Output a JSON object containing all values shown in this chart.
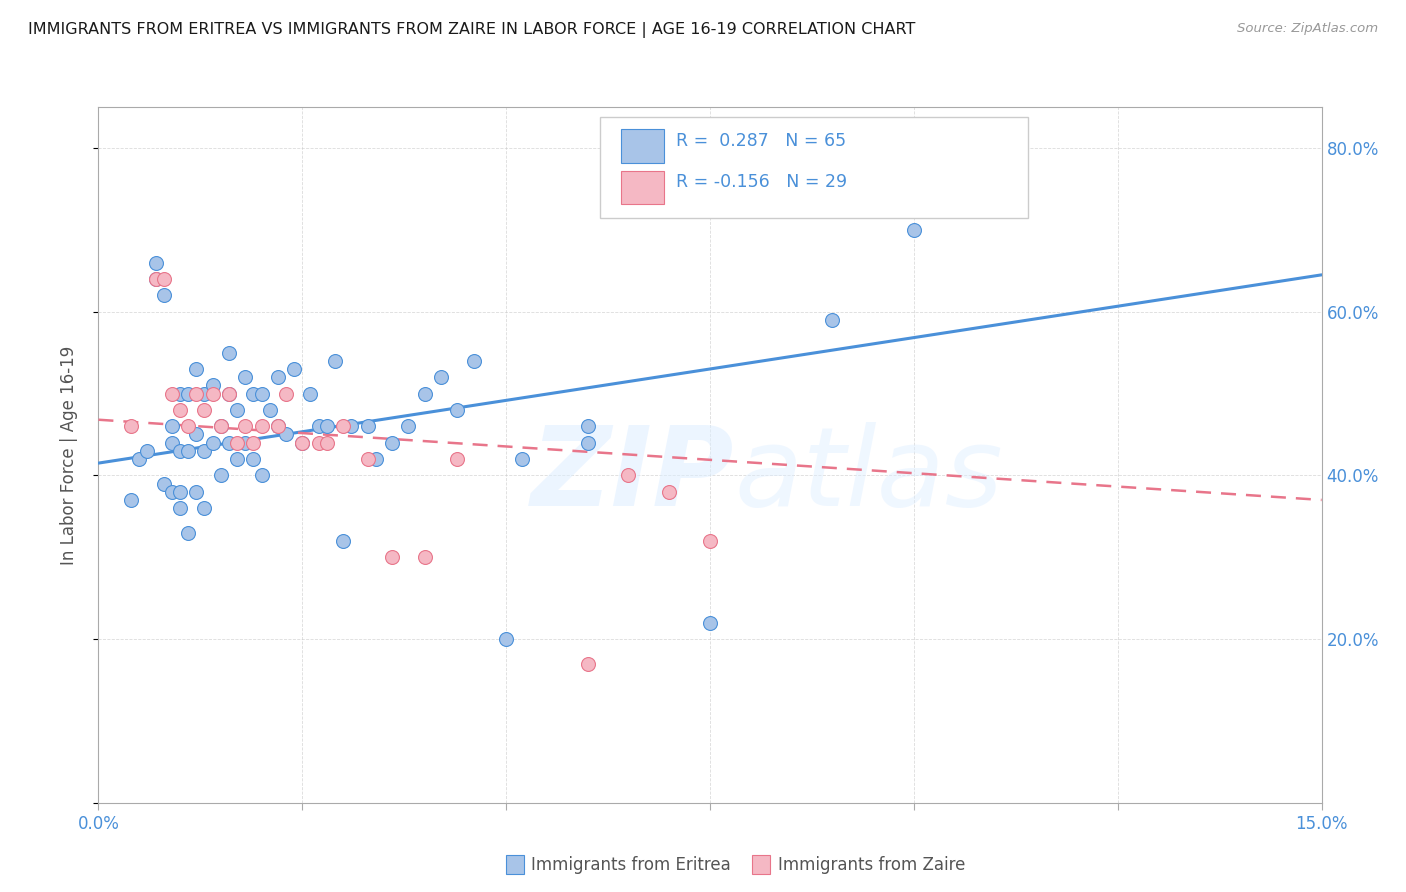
{
  "title": "IMMIGRANTS FROM ERITREA VS IMMIGRANTS FROM ZAIRE IN LABOR FORCE | AGE 16-19 CORRELATION CHART",
  "source": "Source: ZipAtlas.com",
  "ylabel": "In Labor Force | Age 16-19",
  "xlim": [
    0.0,
    0.15
  ],
  "ylim": [
    0.0,
    0.85
  ],
  "xticks": [
    0.0,
    0.025,
    0.05,
    0.075,
    0.1,
    0.125,
    0.15
  ],
  "xticklabels": [
    "0.0%",
    "",
    "",
    "",
    "",
    "",
    "15.0%"
  ],
  "yticks": [
    0.0,
    0.2,
    0.4,
    0.6,
    0.8
  ],
  "yticklabels": [
    "",
    "20.0%",
    "40.0%",
    "60.0%",
    "80.0%"
  ],
  "eritrea_color": "#a8c4e8",
  "zaire_color": "#f5b8c4",
  "eritrea_line_color": "#4a90d9",
  "zaire_line_color": "#e8758a",
  "background_color": "#ffffff",
  "grid_color": "#cccccc",
  "eritrea_scatter_x": [
    0.004,
    0.005,
    0.006,
    0.007,
    0.007,
    0.008,
    0.008,
    0.009,
    0.009,
    0.009,
    0.01,
    0.01,
    0.01,
    0.01,
    0.011,
    0.011,
    0.011,
    0.012,
    0.012,
    0.012,
    0.013,
    0.013,
    0.013,
    0.014,
    0.014,
    0.015,
    0.015,
    0.016,
    0.016,
    0.016,
    0.017,
    0.017,
    0.018,
    0.018,
    0.019,
    0.019,
    0.02,
    0.02,
    0.021,
    0.022,
    0.022,
    0.023,
    0.024,
    0.025,
    0.026,
    0.027,
    0.028,
    0.029,
    0.03,
    0.031,
    0.033,
    0.034,
    0.036,
    0.038,
    0.04,
    0.042,
    0.044,
    0.046,
    0.05,
    0.052,
    0.06,
    0.075,
    0.09,
    0.1,
    0.06
  ],
  "eritrea_scatter_y": [
    0.37,
    0.42,
    0.43,
    0.64,
    0.66,
    0.39,
    0.62,
    0.38,
    0.44,
    0.46,
    0.36,
    0.38,
    0.43,
    0.5,
    0.33,
    0.43,
    0.5,
    0.38,
    0.45,
    0.53,
    0.36,
    0.43,
    0.5,
    0.44,
    0.51,
    0.4,
    0.46,
    0.44,
    0.5,
    0.55,
    0.42,
    0.48,
    0.44,
    0.52,
    0.42,
    0.5,
    0.4,
    0.5,
    0.48,
    0.46,
    0.52,
    0.45,
    0.53,
    0.44,
    0.5,
    0.46,
    0.46,
    0.54,
    0.32,
    0.46,
    0.46,
    0.42,
    0.44,
    0.46,
    0.5,
    0.52,
    0.48,
    0.54,
    0.2,
    0.42,
    0.46,
    0.22,
    0.59,
    0.7,
    0.44
  ],
  "zaire_scatter_x": [
    0.004,
    0.007,
    0.008,
    0.009,
    0.01,
    0.011,
    0.012,
    0.013,
    0.014,
    0.015,
    0.016,
    0.017,
    0.018,
    0.019,
    0.02,
    0.022,
    0.023,
    0.025,
    0.027,
    0.028,
    0.03,
    0.033,
    0.036,
    0.04,
    0.044,
    0.06,
    0.065,
    0.07,
    0.075
  ],
  "zaire_scatter_y": [
    0.46,
    0.64,
    0.64,
    0.5,
    0.48,
    0.46,
    0.5,
    0.48,
    0.5,
    0.46,
    0.5,
    0.44,
    0.46,
    0.44,
    0.46,
    0.46,
    0.5,
    0.44,
    0.44,
    0.44,
    0.46,
    0.42,
    0.3,
    0.3,
    0.42,
    0.17,
    0.4,
    0.38,
    0.32
  ],
  "eritrea_trend_x": [
    0.0,
    0.15
  ],
  "eritrea_trend_y": [
    0.415,
    0.645
  ],
  "zaire_trend_x": [
    0.0,
    0.15
  ],
  "zaire_trend_y": [
    0.468,
    0.37
  ]
}
